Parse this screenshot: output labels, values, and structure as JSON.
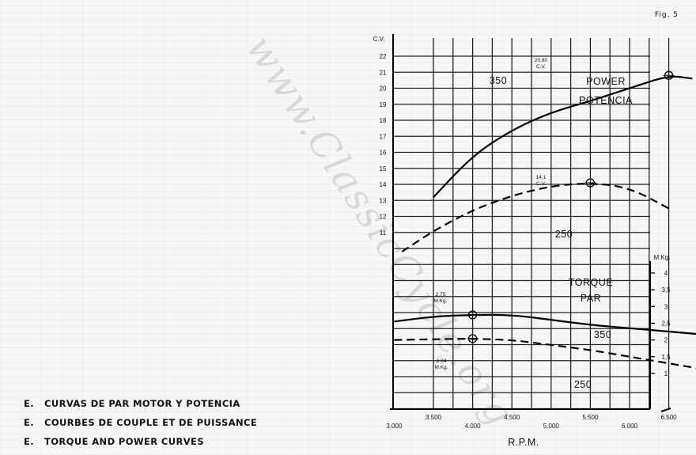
{
  "figure_label": "Fig. 5",
  "watermark": "www.ClassicCycle.org",
  "captions": [
    {
      "code": "E.",
      "text": "CURVAS DE PAR MOTOR Y POTENCIA"
    },
    {
      "code": "E.",
      "text": "COURBES DE COUPLE ET DE PUISSANCE"
    },
    {
      "code": "E.",
      "text": "TORQUE AND POWER CURVES"
    }
  ],
  "chart_data": {
    "type": "line",
    "title": "",
    "xlabel": "R.P.M.",
    "ylabel_left": "C.V.",
    "ylabel_right": "M.Kg.",
    "x_ticks_lower": [
      "3.000",
      "4.000",
      "5.000",
      "6.000",
      "7.000"
    ],
    "x_ticks_upper": [
      "3.500",
      "4.500",
      "5.500",
      "6.500",
      "7.500",
      "8.000"
    ],
    "y_left_ticks": [
      "22",
      "21",
      "20",
      "19",
      "18",
      "17",
      "16",
      "15",
      "14",
      "13",
      "12",
      "11"
    ],
    "y_right_ticks": [
      "4",
      "3,5",
      "3",
      "2,5",
      "2",
      "1,5",
      "1"
    ],
    "grid": true,
    "power_label": [
      "POWER",
      "POTENCIA"
    ],
    "torque_label": [
      "TORQUE",
      "PAR"
    ],
    "series": [
      {
        "name": "350",
        "kind": "power",
        "style": "solid",
        "x": [
          3500,
          4000,
          4500,
          5000,
          5500,
          6000,
          6500,
          6800
        ],
        "y": [
          13.2,
          15.8,
          17.4,
          18.5,
          19.2,
          20.0,
          20.8,
          20.6
        ]
      },
      {
        "name": "250",
        "kind": "power",
        "style": "dashed",
        "x": [
          3100,
          3500,
          4000,
          4500,
          5000,
          5500,
          6000,
          6500
        ],
        "y": [
          9.8,
          11.1,
          12.4,
          13.3,
          13.9,
          14.1,
          13.8,
          12.5
        ]
      },
      {
        "name": "350",
        "kind": "torque",
        "style": "solid",
        "x": [
          3000,
          3500,
          4000,
          4500,
          5000,
          5500,
          6000,
          6500,
          7000,
          7400
        ],
        "y": [
          2.55,
          2.7,
          2.75,
          2.75,
          2.6,
          2.45,
          2.35,
          2.25,
          2.15,
          2.05
        ]
      },
      {
        "name": "250",
        "kind": "torque",
        "style": "dashed",
        "x": [
          3000,
          3500,
          4000,
          4500,
          5000,
          5500,
          6000,
          6500,
          7000,
          7300
        ],
        "y": [
          2.0,
          2.02,
          2.04,
          2.0,
          1.85,
          1.7,
          1.5,
          1.3,
          1.1,
          0.95
        ]
      }
    ],
    "annotations": [
      {
        "series": "power-350",
        "x": 6500,
        "y": 20.8,
        "text": [
          "20.80",
          "C.V."
        ]
      },
      {
        "series": "power-250",
        "x": 5500,
        "y": 14.1,
        "text": [
          "14,1",
          "C.V."
        ]
      },
      {
        "series": "torque-350",
        "x": 4000,
        "y": 2.75,
        "text": [
          "2.75",
          "M.Kg."
        ]
      },
      {
        "series": "torque-250",
        "x": 4000,
        "y": 2.04,
        "text": [
          "2.04",
          "M.Kg."
        ]
      }
    ]
  }
}
